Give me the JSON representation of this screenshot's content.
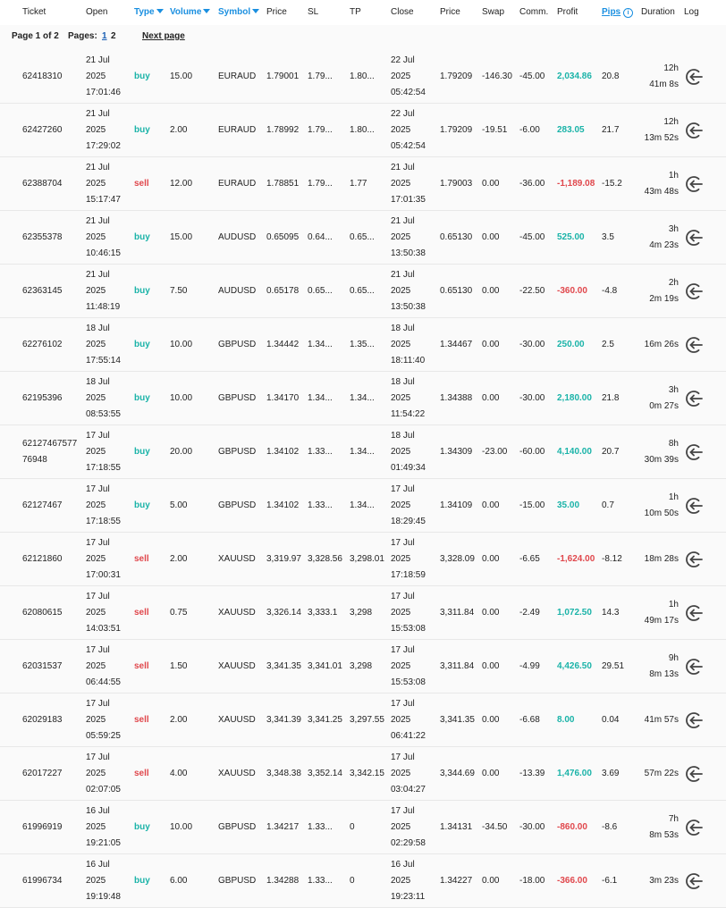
{
  "columns": {
    "ticket": "Ticket",
    "open": "Open",
    "type": "Type",
    "volume": "Volume",
    "symbol": "Symbol",
    "price": "Price",
    "sl": "SL",
    "tp": "TP",
    "close": "Close",
    "close_price": "Price",
    "swap": "Swap",
    "commission": "Comm.",
    "profit": "Profit",
    "pips": "Pips",
    "duration": "Duration",
    "log": "Log"
  },
  "icons": {
    "sort": "sort-down-icon",
    "info": "info-icon",
    "log": "log-out-icon"
  },
  "colors": {
    "accent": "#1a8fe0",
    "buy": "#1ab3a8",
    "sell": "#e0474c"
  },
  "pagination": {
    "page_info": "Page 1 of 2",
    "pages_label": "Pages:",
    "pages": [
      "1",
      "2"
    ],
    "next": "Next page"
  },
  "trades": [
    {
      "ticket": "62418310",
      "open": [
        "21 Jul",
        "2025",
        "17:01:46"
      ],
      "type": "buy",
      "volume": "15.00",
      "symbol": "EURAUD",
      "price": "1.79001",
      "sl": "1.79...",
      "tp": "1.80...",
      "close": [
        "22 Jul",
        "2025",
        "05:42:54"
      ],
      "close_price": "1.79209",
      "swap": "-146.30",
      "commission": "-45.00",
      "profit": "2,034.86",
      "pips": "20.8",
      "duration": [
        "12h",
        "41m 8s"
      ]
    },
    {
      "ticket": "62427260",
      "open": [
        "21 Jul",
        "2025",
        "17:29:02"
      ],
      "type": "buy",
      "volume": "2.00",
      "symbol": "EURAUD",
      "price": "1.78992",
      "sl": "1.79...",
      "tp": "1.80...",
      "close": [
        "22 Jul",
        "2025",
        "05:42:54"
      ],
      "close_price": "1.79209",
      "swap": "-19.51",
      "commission": "-6.00",
      "profit": "283.05",
      "pips": "21.7",
      "duration": [
        "12h",
        "13m 52s"
      ]
    },
    {
      "ticket": "62388704",
      "open": [
        "21 Jul",
        "2025",
        "15:17:47"
      ],
      "type": "sell",
      "volume": "12.00",
      "symbol": "EURAUD",
      "price": "1.78851",
      "sl": "1.79...",
      "tp": "1.77",
      "close": [
        "21 Jul",
        "2025",
        "17:01:35"
      ],
      "close_price": "1.79003",
      "swap": "0.00",
      "commission": "-36.00",
      "profit": "-1,189.08",
      "pips": "-15.2",
      "duration": [
        "1h",
        "43m 48s"
      ]
    },
    {
      "ticket": "62355378",
      "open": [
        "21 Jul",
        "2025",
        "10:46:15"
      ],
      "type": "buy",
      "volume": "15.00",
      "symbol": "AUDUSD",
      "price": "0.65095",
      "sl": "0.64...",
      "tp": "0.65...",
      "close": [
        "21 Jul",
        "2025",
        "13:50:38"
      ],
      "close_price": "0.65130",
      "swap": "0.00",
      "commission": "-45.00",
      "profit": "525.00",
      "pips": "3.5",
      "duration": [
        "3h",
        "4m 23s"
      ]
    },
    {
      "ticket": "62363145",
      "open": [
        "21 Jul",
        "2025",
        "11:48:19"
      ],
      "type": "buy",
      "volume": "7.50",
      "symbol": "AUDUSD",
      "price": "0.65178",
      "sl": "0.65...",
      "tp": "0.65...",
      "close": [
        "21 Jul",
        "2025",
        "13:50:38"
      ],
      "close_price": "0.65130",
      "swap": "0.00",
      "commission": "-22.50",
      "profit": "-360.00",
      "pips": "-4.8",
      "duration": [
        "2h",
        "2m 19s"
      ]
    },
    {
      "ticket": "62276102",
      "open": [
        "18 Jul",
        "2025",
        "17:55:14"
      ],
      "type": "buy",
      "volume": "10.00",
      "symbol": "GBPUSD",
      "price": "1.34442",
      "sl": "1.34...",
      "tp": "1.35...",
      "close": [
        "18 Jul",
        "2025",
        "18:11:40"
      ],
      "close_price": "1.34467",
      "swap": "0.00",
      "commission": "-30.00",
      "profit": "250.00",
      "pips": "2.5",
      "duration": [
        "16m 26s"
      ]
    },
    {
      "ticket": "62195396",
      "open": [
        "18 Jul",
        "2025",
        "08:53:55"
      ],
      "type": "buy",
      "volume": "10.00",
      "symbol": "GBPUSD",
      "price": "1.34170",
      "sl": "1.34...",
      "tp": "1.34...",
      "close": [
        "18 Jul",
        "2025",
        "11:54:22"
      ],
      "close_price": "1.34388",
      "swap": "0.00",
      "commission": "-30.00",
      "profit": "2,180.00",
      "pips": "21.8",
      "duration": [
        "3h",
        "0m 27s"
      ]
    },
    {
      "ticket": "6212746757776948",
      "open": [
        "17 Jul",
        "2025",
        "17:18:55"
      ],
      "type": "buy",
      "volume": "20.00",
      "symbol": "GBPUSD",
      "price": "1.34102",
      "sl": "1.33...",
      "tp": "1.34...",
      "close": [
        "18 Jul",
        "2025",
        "01:49:34"
      ],
      "close_price": "1.34309",
      "swap": "-23.00",
      "commission": "-60.00",
      "profit": "4,140.00",
      "pips": "20.7",
      "duration": [
        "8h",
        "30m 39s"
      ]
    },
    {
      "ticket": "62127467",
      "open": [
        "17 Jul",
        "2025",
        "17:18:55"
      ],
      "type": "buy",
      "volume": "5.00",
      "symbol": "GBPUSD",
      "price": "1.34102",
      "sl": "1.33...",
      "tp": "1.34...",
      "close": [
        "17 Jul",
        "2025",
        "18:29:45"
      ],
      "close_price": "1.34109",
      "swap": "0.00",
      "commission": "-15.00",
      "profit": "35.00",
      "pips": "0.7",
      "duration": [
        "1h",
        "10m 50s"
      ]
    },
    {
      "ticket": "62121860",
      "open": [
        "17 Jul",
        "2025",
        "17:00:31"
      ],
      "type": "sell",
      "volume": "2.00",
      "symbol": "XAUUSD",
      "price": "3,319.97",
      "sl": "3,328.56",
      "tp": "3,298.01",
      "close": [
        "17 Jul",
        "2025",
        "17:18:59"
      ],
      "close_price": "3,328.09",
      "swap": "0.00",
      "commission": "-6.65",
      "profit": "-1,624.00",
      "pips": "-8.12",
      "duration": [
        "18m 28s"
      ]
    },
    {
      "ticket": "62080615",
      "open": [
        "17 Jul",
        "2025",
        "14:03:51"
      ],
      "type": "sell",
      "volume": "0.75",
      "symbol": "XAUUSD",
      "price": "3,326.14",
      "sl": "3,333.1",
      "tp": "3,298",
      "close": [
        "17 Jul",
        "2025",
        "15:53:08"
      ],
      "close_price": "3,311.84",
      "swap": "0.00",
      "commission": "-2.49",
      "profit": "1,072.50",
      "pips": "14.3",
      "duration": [
        "1h",
        "49m 17s"
      ]
    },
    {
      "ticket": "62031537",
      "open": [
        "17 Jul",
        "2025",
        "06:44:55"
      ],
      "type": "sell",
      "volume": "1.50",
      "symbol": "XAUUSD",
      "price": "3,341.35",
      "sl": "3,341.01",
      "tp": "3,298",
      "close": [
        "17 Jul",
        "2025",
        "15:53:08"
      ],
      "close_price": "3,311.84",
      "swap": "0.00",
      "commission": "-4.99",
      "profit": "4,426.50",
      "pips": "29.51",
      "duration": [
        "9h",
        "8m 13s"
      ]
    },
    {
      "ticket": "62029183",
      "open": [
        "17 Jul",
        "2025",
        "05:59:25"
      ],
      "type": "sell",
      "volume": "2.00",
      "symbol": "XAUUSD",
      "price": "3,341.39",
      "sl": "3,341.25",
      "tp": "3,297.55",
      "close": [
        "17 Jul",
        "2025",
        "06:41:22"
      ],
      "close_price": "3,341.35",
      "swap": "0.00",
      "commission": "-6.68",
      "profit": "8.00",
      "pips": "0.04",
      "duration": [
        "41m 57s"
      ]
    },
    {
      "ticket": "62017227",
      "open": [
        "17 Jul",
        "2025",
        "02:07:05"
      ],
      "type": "sell",
      "volume": "4.00",
      "symbol": "XAUUSD",
      "price": "3,348.38",
      "sl": "3,352.14",
      "tp": "3,342.15",
      "close": [
        "17 Jul",
        "2025",
        "03:04:27"
      ],
      "close_price": "3,344.69",
      "swap": "0.00",
      "commission": "-13.39",
      "profit": "1,476.00",
      "pips": "3.69",
      "duration": [
        "57m 22s"
      ]
    },
    {
      "ticket": "61996919",
      "open": [
        "16 Jul",
        "2025",
        "19:21:05"
      ],
      "type": "buy",
      "volume": "10.00",
      "symbol": "GBPUSD",
      "price": "1.34217",
      "sl": "1.33...",
      "tp": "0",
      "close": [
        "17 Jul",
        "2025",
        "02:29:58"
      ],
      "close_price": "1.34131",
      "swap": "-34.50",
      "commission": "-30.00",
      "profit": "-860.00",
      "pips": "-8.6",
      "duration": [
        "7h",
        "8m 53s"
      ]
    },
    {
      "ticket": "61996734",
      "open": [
        "16 Jul",
        "2025",
        "19:19:48"
      ],
      "type": "buy",
      "volume": "6.00",
      "symbol": "GBPUSD",
      "price": "1.34288",
      "sl": "1.33...",
      "tp": "0",
      "close": [
        "16 Jul",
        "2025",
        "19:23:11"
      ],
      "close_price": "1.34227",
      "swap": "0.00",
      "commission": "-18.00",
      "profit": "-366.00",
      "pips": "-6.1",
      "duration": [
        "3m 23s"
      ]
    }
  ]
}
